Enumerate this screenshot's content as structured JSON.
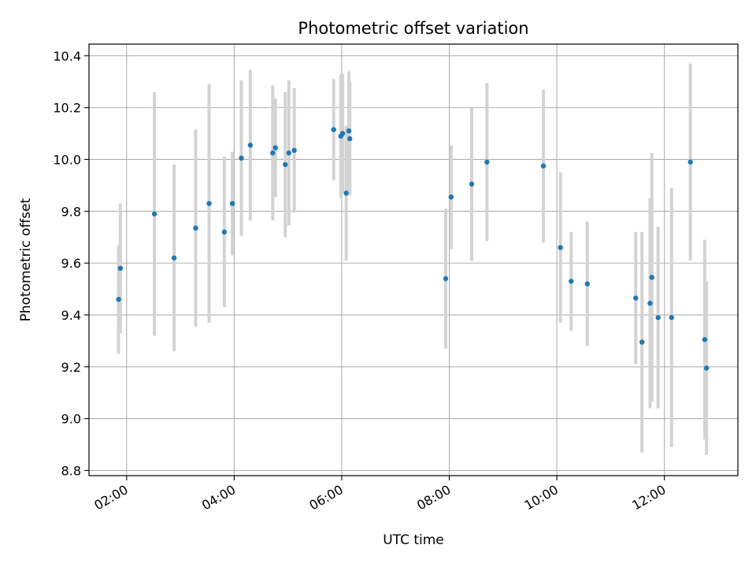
{
  "chart_data": {
    "type": "scatter",
    "title": "Photometric offset variation",
    "xlabel": "UTC time",
    "ylabel": "Photometric offset",
    "xlim": [
      "01:18",
      "13:22"
    ],
    "ylim": [
      8.78,
      10.445
    ],
    "x_ticks": [
      "02:00",
      "04:00",
      "06:00",
      "08:00",
      "10:00",
      "12:00"
    ],
    "y_ticks": [
      8.8,
      9.0,
      9.2,
      9.4,
      9.6,
      9.8,
      10.0,
      10.2,
      10.4
    ],
    "y_tick_labels": [
      "8.8",
      "9.0",
      "9.2",
      "9.4",
      "9.6",
      "9.8",
      "10.0",
      "10.2",
      "10.4"
    ],
    "grid": true,
    "marker_color": "#1f77b4",
    "errorbar_color": "#d3d3d3",
    "series": [
      {
        "points": [
          {
            "x": "01:51",
            "y": 9.46,
            "err": 0.21
          },
          {
            "x": "01:53",
            "y": 9.58,
            "err": 0.25
          },
          {
            "x": "02:31",
            "y": 9.79,
            "err": 0.47
          },
          {
            "x": "02:53",
            "y": 9.62,
            "err": 0.36
          },
          {
            "x": "03:17",
            "y": 9.735,
            "err": 0.38
          },
          {
            "x": "03:32",
            "y": 9.83,
            "err": 0.46
          },
          {
            "x": "03:49",
            "y": 9.72,
            "err": 0.29
          },
          {
            "x": "03:58",
            "y": 9.83,
            "err": 0.2
          },
          {
            "x": "04:08",
            "y": 10.005,
            "err": 0.3
          },
          {
            "x": "04:18",
            "y": 10.055,
            "err": 0.29
          },
          {
            "x": "04:43",
            "y": 10.025,
            "err": 0.26
          },
          {
            "x": "04:46",
            "y": 10.045,
            "err": 0.19
          },
          {
            "x": "04:57",
            "y": 9.98,
            "err": 0.28
          },
          {
            "x": "05:01",
            "y": 10.025,
            "err": 0.28
          },
          {
            "x": "05:07",
            "y": 10.035,
            "err": 0.24
          },
          {
            "x": "05:51",
            "y": 10.115,
            "err": 0.195
          },
          {
            "x": "05:59",
            "y": 10.09,
            "err": 0.24
          },
          {
            "x": "06:01",
            "y": 10.1,
            "err": 0.23
          },
          {
            "x": "06:05",
            "y": 9.87,
            "err": 0.26
          },
          {
            "x": "06:08",
            "y": 10.11,
            "err": 0.23
          },
          {
            "x": "06:09",
            "y": 10.08,
            "err": 0.22
          },
          {
            "x": "07:56",
            "y": 9.54,
            "err": 0.27
          },
          {
            "x": "08:02",
            "y": 9.855,
            "err": 0.2
          },
          {
            "x": "08:25",
            "y": 9.905,
            "err": 0.295
          },
          {
            "x": "08:42",
            "y": 9.99,
            "err": 0.305
          },
          {
            "x": "09:45",
            "y": 9.975,
            "err": 0.295
          },
          {
            "x": "10:04",
            "y": 9.66,
            "err": 0.29
          },
          {
            "x": "10:16",
            "y": 9.53,
            "err": 0.19
          },
          {
            "x": "10:34",
            "y": 9.52,
            "err": 0.24
          },
          {
            "x": "11:28",
            "y": 9.465,
            "err": 0.255
          },
          {
            "x": "11:35",
            "y": 9.295,
            "err": 0.425
          },
          {
            "x": "11:44",
            "y": 9.445,
            "err": 0.405
          },
          {
            "x": "11:46",
            "y": 9.545,
            "err": 0.48
          },
          {
            "x": "11:53",
            "y": 9.39,
            "err": 0.35
          },
          {
            "x": "12:08",
            "y": 9.39,
            "err": 0.5
          },
          {
            "x": "12:29",
            "y": 9.99,
            "err": 0.38
          },
          {
            "x": "12:45",
            "y": 9.305,
            "err": 0.385
          },
          {
            "x": "12:47",
            "y": 9.195,
            "err": 0.335
          }
        ]
      }
    ]
  }
}
